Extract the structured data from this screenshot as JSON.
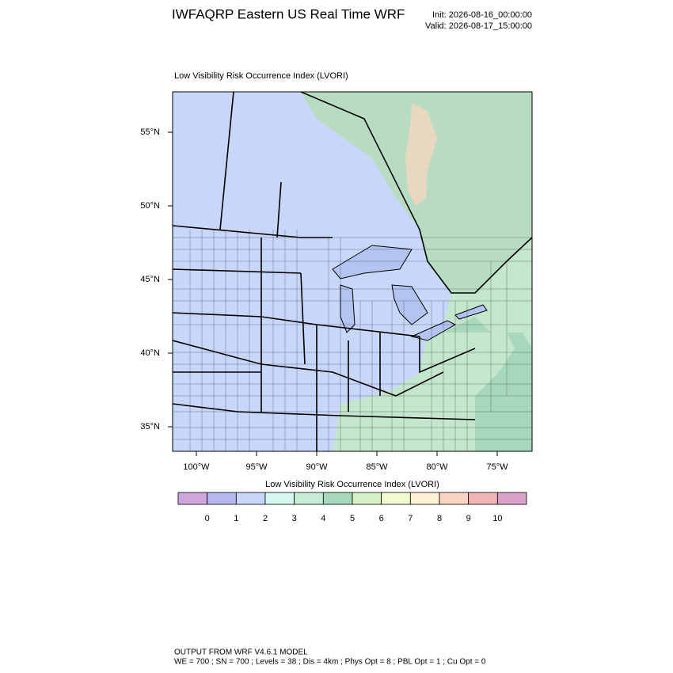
{
  "header": {
    "title": "IWFAQRP Eastern US Real Time WRF",
    "init": "Init: 2026-08-16_00:00:00",
    "valid": "Valid: 2026-08-17_15:00:00"
  },
  "plot": {
    "title": "Low Visibility Risk Occurrence Index   (LVORI)",
    "lon_labels": [
      "100°W",
      "95°W",
      "90°W",
      "85°W",
      "80°W",
      "75°W"
    ],
    "lat_labels": [
      "55°N",
      "50°N",
      "45°N",
      "40°N",
      "35°N"
    ]
  },
  "colorbar": {
    "title": "Low Visibility Risk Occurrence Index  (LVORI)",
    "levels": [
      0,
      1,
      2,
      3,
      4,
      5,
      6,
      7,
      8,
      9,
      10
    ],
    "colors": [
      "#cfa6dc",
      "#b4b8ee",
      "#c8d6fa",
      "#d6f8f0",
      "#c4ecd6",
      "#a8d8bc",
      "#d8f0c6",
      "#f2fad2",
      "#fdf2d2",
      "#f8d4c2",
      "#f0b4b4",
      "#d8a2c8"
    ]
  },
  "footer": {
    "line1": "OUTPUT FROM WRF V4.6.1 MODEL",
    "line2": "WE = 700 ; SN = 700 ; Levels = 38 ; Dis = 4km ; Phys Opt = 8 ; PBL Opt = 1 ; Cu Opt = 0"
  }
}
